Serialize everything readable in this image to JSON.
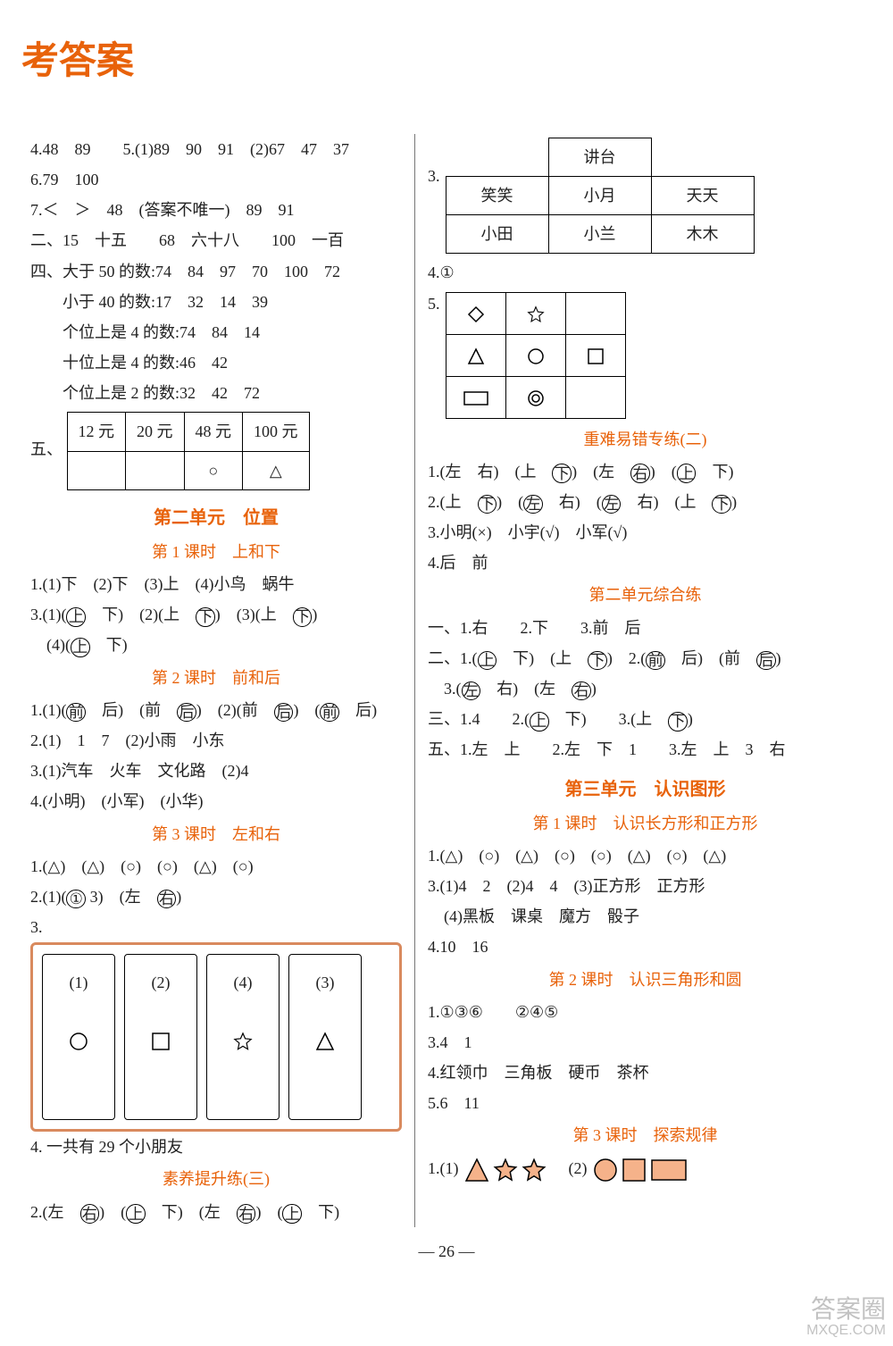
{
  "title": "考答案",
  "pageNumber": "— 26 —",
  "watermark": {
    "line1": "答案圈",
    "line2": "MXQE.COM"
  },
  "left": {
    "intro": [
      "4.48　89　　5.(1)89　90　91　(2)67　47　37",
      "6.79　100",
      "7.＜　＞　48　(答案不唯一)　89　91",
      "二、15　十五　　68　六十八　　100　一百",
      "四、大于 50 的数:74　84　97　70　100　72",
      "　　小于 40 的数:17　32　14　39",
      "　　个位上是 4 的数:74　84　14",
      "　　十位上是 4 的数:46　42",
      "　　个位上是 2 的数:32　42　72"
    ],
    "fiveLabel": "五、",
    "fiveTable": {
      "headers": [
        "12 元",
        "20 元",
        "48 元",
        "100 元"
      ],
      "cells": [
        "",
        "",
        "○",
        "△"
      ]
    },
    "unit2": "第二单元　位置",
    "lesson1": "第 1 课时　上和下",
    "l1": [
      "1.(1)下　(2)下　(3)上　(4)小鸟　蜗牛"
    ],
    "l1_3_parts": {
      "prefix": "3.(1)(",
      "a": "上",
      "b": "　下)　(2)(上　",
      "c": "下",
      "d": ")　(3)(上　",
      "e": "下",
      "f": ")",
      "line2_pre": "　(4)(",
      "g": "上",
      "line2_post": "　下)"
    },
    "lesson2": "第 2 课时　前和后",
    "l2_1": {
      "pre": "1.(1)(",
      "a": "前",
      "b": "　后)　(前　",
      "c": "后",
      "d": ")　(2)(前　",
      "e": "后",
      "f": ")　(",
      "g": "前",
      "h": "　后)"
    },
    "l2_rest": [
      "2.(1)　1　7　(2)小雨　小东",
      "3.(1)汽车　火车　文化路　(2)4",
      "4.(小明)　(小军)　(小华)"
    ],
    "lesson3": "第 3 课时　左和右",
    "l3": [
      "1.(△)　(△)　(○)　(○)　(△)　(○)"
    ],
    "l3_2": {
      "pre": "2.(1)(",
      "a": "①",
      "b": " 3)　(左　",
      "c": "右",
      "d": ")"
    },
    "q3label": "3.",
    "panels": [
      {
        "num": "(1)",
        "shape": "circle"
      },
      {
        "num": "(2)",
        "shape": "square"
      },
      {
        "num": "(4)",
        "shape": "star"
      },
      {
        "num": "(3)",
        "shape": "triangle"
      }
    ],
    "l3_4": "4. 一共有 29 个小朋友",
    "raise3": "素养提升练(三)",
    "raise3_2": {
      "pre": "2.(左　",
      "a": "右",
      "b": ")　(",
      "c": "上",
      "d": "　下)　(左　",
      "e": "右",
      "f": ")　(",
      "g": "上",
      "h": "　下)"
    }
  },
  "right": {
    "q3label": "3.",
    "seating": {
      "top": "讲台",
      "row1": [
        "笑笑",
        "小月",
        "天天"
      ],
      "row2": [
        "小田",
        "小兰",
        "木木"
      ]
    },
    "q4": "4.①",
    "q5label": "5.",
    "grid": [
      [
        "diamond",
        "star",
        ""
      ],
      [
        "triangle",
        "circle",
        "square"
      ],
      [
        "rect",
        "donut",
        ""
      ]
    ],
    "hard2": "重难易错专练(二)",
    "h2_1": {
      "pre": "1.(左　右)　(上　",
      "a": "下",
      "b": ")　(左　",
      "c": "右",
      "d": ")　(",
      "e": "上",
      "f": "　下)"
    },
    "h2_2": {
      "pre": "2.(上　",
      "a": "下",
      "b": ")　(",
      "c": "左",
      "d": "　右)　(",
      "e": "左",
      "f": "　右)　(上　",
      "g": "下",
      "h": ")"
    },
    "h2_3": "3.小明(×)　小宇(√)　小军(√)",
    "h2_4": "4.后　前",
    "unit2comp": "第二单元综合练",
    "u2_1": "一、1.右　　2.下　　3.前　后",
    "u2_2": {
      "pre": "二、1.(",
      "a": "上",
      "b": "　下)　(上　",
      "c": "下",
      "d": ")　2.(",
      "e": "前",
      "f": "　后)　(前　",
      "g": "后",
      "h": ")"
    },
    "u2_2b": {
      "pre": "　3.(",
      "a": "左",
      "b": "　右)　(左　",
      "c": "右",
      "d": ")"
    },
    "u2_3": {
      "pre": "三、1.4　　2.(",
      "a": "上",
      "b": "　下)　　3.(上　",
      "c": "下",
      "d": ")"
    },
    "u2_5": "五、1.左　上　　2.左　下　1　　3.左　上　3　右",
    "unit3": "第三单元　认识图形",
    "u3l1": "第 1 课时　认识长方形和正方形",
    "u3_1": "1.(△)　(○)　(△)　(○)　(○)　(△)　(○)　(△)",
    "u3_3a": "3.(1)4　2　(2)4　4　(3)正方形　正方形",
    "u3_3b": "　(4)黑板　课桌　魔方　骰子",
    "u3_4": "4.10　16",
    "u3l2": "第 2 课时　认识三角形和圆",
    "u3l2_1": "1.①③⑥　　②④⑤",
    "u3l2_3": "3.4　1",
    "u3l2_4": "4.红领巾　三角板　硬币　茶杯",
    "u3l2_5": "5.6　11",
    "u3l3": "第 3 课时　探索规律",
    "u3l3_1_pre": "1.(1)",
    "u3l3_1_mid": "　(2)",
    "shapes1": [
      "triangle",
      "star",
      "star"
    ],
    "shapes2": [
      "circle",
      "square",
      "rect"
    ]
  }
}
